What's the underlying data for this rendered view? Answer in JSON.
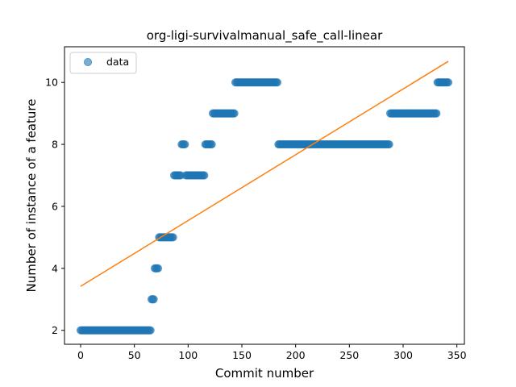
{
  "chart_data": {
    "type": "scatter",
    "title": "org-ligi-survivalmanual_safe_call-linear",
    "xlabel": "Commit number",
    "ylabel": "Number of instance of a feature",
    "xlim": [
      -15,
      357
    ],
    "ylim": [
      1.55,
      11.15
    ],
    "xticks": [
      0,
      50,
      100,
      150,
      200,
      250,
      300,
      350
    ],
    "yticks": [
      2,
      4,
      6,
      8,
      10
    ],
    "grid": false,
    "legend": {
      "placement": "top-left",
      "entries": [
        "data"
      ]
    },
    "colors": {
      "data": "#1f77b4",
      "fit": "#ff7f0e"
    },
    "series": [
      {
        "name": "data",
        "kind": "scatter",
        "segments": [
          {
            "x_start": 0,
            "x_end": 65,
            "y": 2
          },
          {
            "x_start": 66,
            "x_end": 68,
            "y": 3
          },
          {
            "x_start": 69,
            "x_end": 72,
            "y": 4
          },
          {
            "x_start": 73,
            "x_end": 86,
            "y": 5
          },
          {
            "x_start": 87,
            "x_end": 93,
            "y": 7
          },
          {
            "x_start": 94,
            "x_end": 97,
            "y": 8
          },
          {
            "x_start": 98,
            "x_end": 115,
            "y": 7
          },
          {
            "x_start": 116,
            "x_end": 122,
            "y": 8
          },
          {
            "x_start": 123,
            "x_end": 143,
            "y": 9
          },
          {
            "x_start": 144,
            "x_end": 183,
            "y": 10
          },
          {
            "x_start": 184,
            "x_end": 287,
            "y": 8
          },
          {
            "x_start": 288,
            "x_end": 331,
            "y": 9
          },
          {
            "x_start": 332,
            "x_end": 342,
            "y": 10
          }
        ]
      },
      {
        "name": "",
        "kind": "line",
        "x": [
          0,
          342
        ],
        "y": [
          3.42,
          10.68
        ]
      }
    ]
  }
}
